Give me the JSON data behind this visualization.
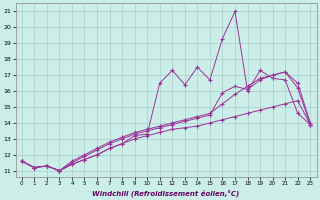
{
  "xlabel": "Windchill (Refroidissement éolien,°C)",
  "bg_color": "#cceee8",
  "line_color": "#993399",
  "grid_color": "#aacccc",
  "x": [
    0,
    1,
    2,
    3,
    4,
    5,
    6,
    7,
    8,
    9,
    10,
    11,
    12,
    13,
    14,
    15,
    16,
    17,
    18,
    19,
    20,
    21,
    22,
    23
  ],
  "y_noisy": [
    11.6,
    11.2,
    11.3,
    11.0,
    11.4,
    11.7,
    12.0,
    12.4,
    12.7,
    13.2,
    13.3,
    16.5,
    17.3,
    16.4,
    17.5,
    16.7,
    19.3,
    21.0,
    16.0,
    17.3,
    16.8,
    16.7,
    14.6,
    13.9
  ],
  "y_trend1": [
    11.6,
    11.2,
    11.3,
    11.0,
    11.5,
    11.9,
    12.3,
    12.7,
    13.0,
    13.3,
    13.5,
    13.7,
    13.9,
    14.1,
    14.3,
    14.5,
    15.9,
    16.3,
    16.1,
    16.7,
    17.0,
    17.2,
    16.2,
    13.9
  ],
  "y_trend2": [
    11.6,
    11.2,
    11.3,
    11.0,
    11.6,
    12.0,
    12.4,
    12.8,
    13.1,
    13.4,
    13.6,
    13.8,
    14.0,
    14.2,
    14.4,
    14.6,
    15.2,
    15.8,
    16.3,
    16.8,
    17.0,
    17.2,
    16.5,
    14.0
  ],
  "y_base": [
    11.6,
    11.2,
    11.3,
    11.0,
    11.4,
    11.7,
    12.0,
    12.4,
    12.7,
    13.0,
    13.2,
    13.4,
    13.6,
    13.7,
    13.8,
    14.0,
    14.2,
    14.4,
    14.6,
    14.8,
    15.0,
    15.2,
    15.4,
    13.9
  ],
  "xlim": [
    -0.5,
    23.5
  ],
  "ylim": [
    10.6,
    21.5
  ],
  "yticks": [
    11,
    12,
    13,
    14,
    15,
    16,
    17,
    18,
    19,
    20,
    21
  ],
  "xticks": [
    0,
    1,
    2,
    3,
    4,
    5,
    6,
    7,
    8,
    9,
    10,
    11,
    12,
    13,
    14,
    15,
    16,
    17,
    18,
    19,
    20,
    21,
    22,
    23
  ]
}
